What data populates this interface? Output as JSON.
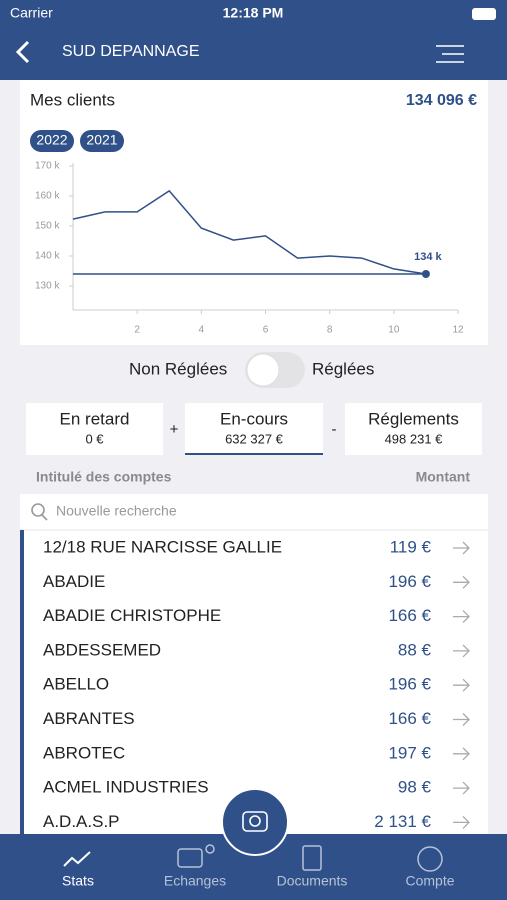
{
  "status": {
    "carrier": "Carrier",
    "time": "12:18 PM"
  },
  "header": {
    "title": "SUD DEPANNAGE"
  },
  "card": {
    "title": "Mes clients",
    "total": "134 096 €"
  },
  "chart_data": {
    "type": "line",
    "x": [
      0,
      1,
      2,
      3,
      4,
      5,
      6,
      7,
      8,
      9,
      10,
      11
    ],
    "series": [
      {
        "name": "2022",
        "color": "#2f5088",
        "values": [
          152.3,
          154.7,
          154.7,
          161.7,
          149.3,
          145.3,
          146.7,
          139.3,
          140,
          139.3,
          135.7,
          134
        ]
      },
      {
        "name": "2021",
        "color": "#2f5088",
        "values": [
          134,
          134,
          134,
          134,
          134,
          134,
          134,
          134,
          134,
          134,
          134,
          134
        ]
      }
    ],
    "xlim": [
      0,
      12
    ],
    "xticks": [
      2,
      4,
      6,
      8,
      10,
      12
    ],
    "ylim": [
      122,
      171
    ],
    "yticks": [
      {
        "value": 130,
        "label": "130 k"
      },
      {
        "value": 140,
        "label": "140 k"
      },
      {
        "value": 150,
        "label": "150 k"
      },
      {
        "value": 160,
        "label": "160 k"
      },
      {
        "value": 170,
        "label": "170 k"
      }
    ],
    "annotation": "134 k"
  },
  "toggle": {
    "left": "Non Réglées",
    "right": "Réglées"
  },
  "summary": [
    {
      "label": "En retard",
      "value": "0 €"
    },
    {
      "label": "En-cours",
      "value": "632 327 €"
    },
    {
      "label": "Réglements",
      "value": "498 231 €"
    }
  ],
  "operators": [
    "+",
    "-"
  ],
  "list": {
    "col_name": "Intitulé des comptes",
    "col_amount": "Montant",
    "search": "Nouvelle recherche",
    "rows": [
      [
        "12/18 RUE NARCISSE GALLIE",
        "119 €"
      ],
      [
        "ABADIE",
        "196 €"
      ],
      [
        "ABADIE CHRISTOPHE",
        "166 €"
      ],
      [
        "ABDESSEMED",
        "88 €"
      ],
      [
        "ABELLO",
        "196 €"
      ],
      [
        "ABRANTES",
        "166 €"
      ],
      [
        "ABROTEC",
        "197 €"
      ],
      [
        "ACMEL INDUSTRIES",
        "98 €"
      ],
      [
        "A.D.A.S.P",
        "2 131 €"
      ]
    ]
  },
  "tabs": [
    "Stats",
    "Echanges",
    "Documents",
    "Compte"
  ]
}
